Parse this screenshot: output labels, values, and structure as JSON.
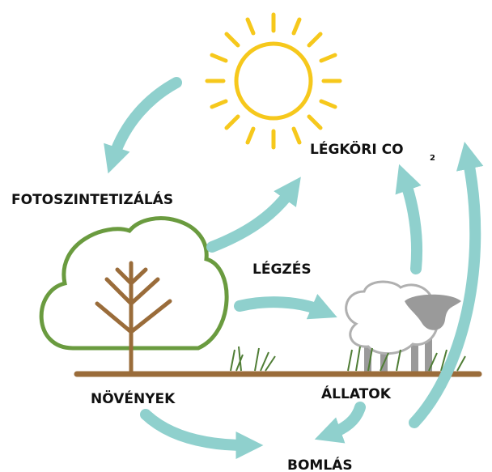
{
  "nodes": [
    {
      "label": "FOTOSZINTETIZÁLÁS"
    },
    {
      "label": "LÉGKÖRI CO",
      "subscript": "2"
    },
    {
      "label": "LÉGZÉS"
    },
    {
      "label": "NÖVÉNYEK"
    },
    {
      "label": "ÁLLATOK"
    },
    {
      "label": "BOMLÁS"
    }
  ]
}
